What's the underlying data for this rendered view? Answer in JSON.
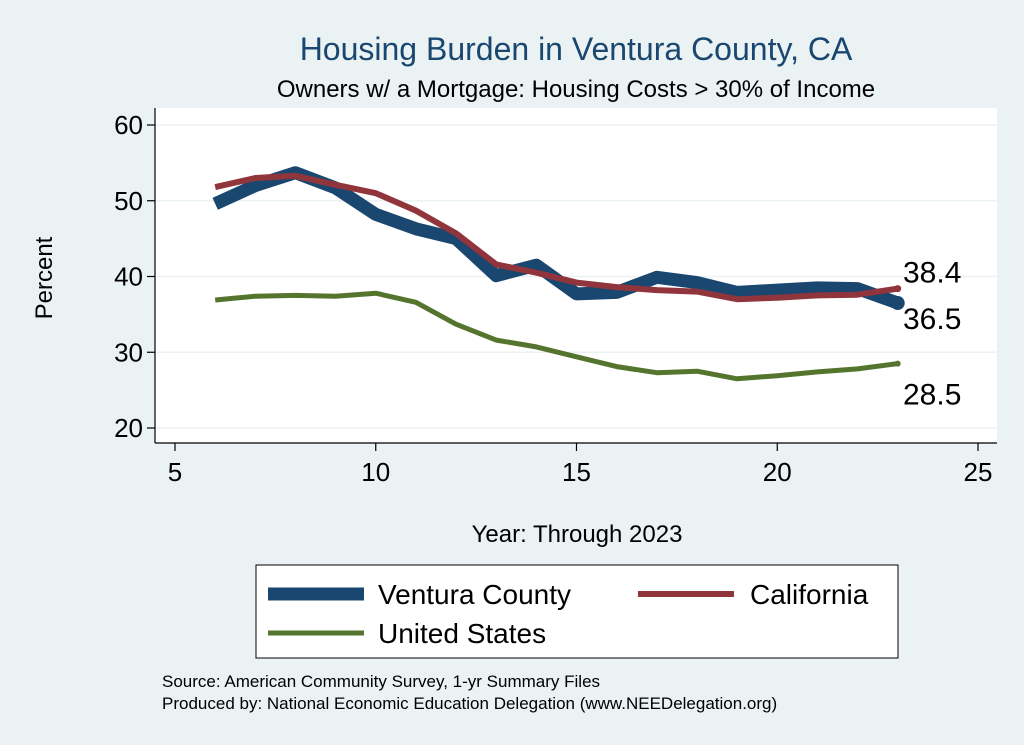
{
  "chart_data": {
    "type": "line",
    "title": "Housing Burden in Ventura County, CA",
    "subtitle": "Owners w/ a Mortgage: Housing Costs > 30% of Income",
    "xlabel": "Year: Through 2023",
    "ylabel": "Percent",
    "xlim": [
      5,
      25
    ],
    "ylim": [
      20,
      60
    ],
    "xticks": [
      5,
      10,
      15,
      20,
      25
    ],
    "yticks": [
      20,
      30,
      40,
      50,
      60
    ],
    "grid": true,
    "legend_position": "bottom",
    "x": [
      6,
      7,
      8,
      9,
      10,
      11,
      12,
      13,
      14,
      15,
      16,
      17,
      18,
      19,
      20,
      21,
      22,
      23
    ],
    "series": [
      {
        "name": "Ventura County",
        "color": "#1a476f",
        "values": [
          49.6,
          52.0,
          53.7,
          51.7,
          48.2,
          46.3,
          45.0,
          40.1,
          41.5,
          37.7,
          37.9,
          39.9,
          39.2,
          37.9,
          38.2,
          38.5,
          38.4,
          36.5
        ],
        "end_label": "36.5"
      },
      {
        "name": "California",
        "color": "#90353b",
        "values": [
          51.8,
          53.0,
          53.3,
          52.1,
          51.0,
          48.7,
          45.7,
          41.6,
          40.5,
          39.2,
          38.6,
          38.2,
          38.0,
          37.0,
          37.2,
          37.5,
          37.6,
          38.4
        ],
        "end_label": "38.4"
      },
      {
        "name": "United States",
        "color": "#55752f",
        "values": [
          36.9,
          37.4,
          37.5,
          37.4,
          37.8,
          36.6,
          33.7,
          31.6,
          30.7,
          29.4,
          28.1,
          27.3,
          27.5,
          26.5,
          26.9,
          27.4,
          27.8,
          28.5
        ],
        "end_label": "28.5"
      }
    ]
  },
  "notes": {
    "source": "Source: American Community Survey, 1-yr Summary Files",
    "produced_by": "Produced by: National Economic Education Delegation (www.NEEDelegation.org)"
  }
}
